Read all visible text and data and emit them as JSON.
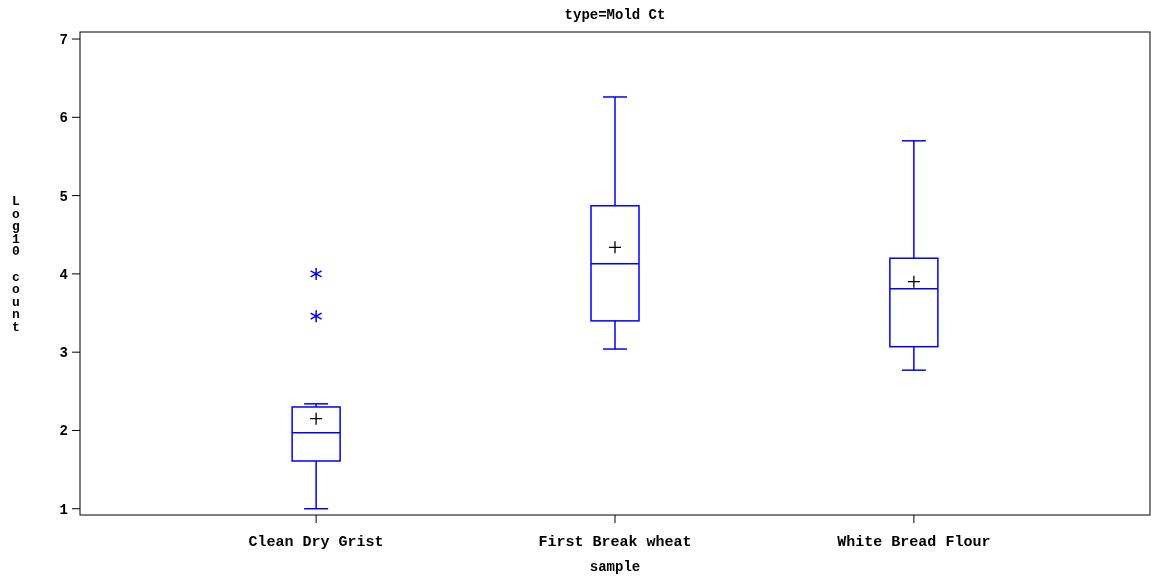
{
  "chart_data": {
    "type": "box",
    "title": "type=Mold Ct",
    "xlabel": "sample",
    "ylabel": "Log10 count",
    "categories": [
      "Clean Dry Grist",
      "First Break wheat",
      "White Bread Flour"
    ],
    "color": "#0000ff",
    "boxes": [
      {
        "low": 1.0,
        "q1": 1.61,
        "median": 1.97,
        "q3": 2.3,
        "high": 2.34,
        "mean": 2.15,
        "outliers": [
          4.0,
          3.46
        ]
      },
      {
        "low": 3.04,
        "q1": 3.4,
        "median": 4.13,
        "q3": 4.87,
        "high": 6.26,
        "mean": 4.34
      },
      {
        "low": 2.77,
        "q1": 3.07,
        "median": 3.81,
        "q3": 4.2,
        "high": 5.7,
        "mean": 3.9
      }
    ],
    "ylim": [
      0.92,
      7.09
    ],
    "yticks": [
      1,
      2,
      3,
      4,
      5,
      6,
      7
    ],
    "grid": false
  }
}
